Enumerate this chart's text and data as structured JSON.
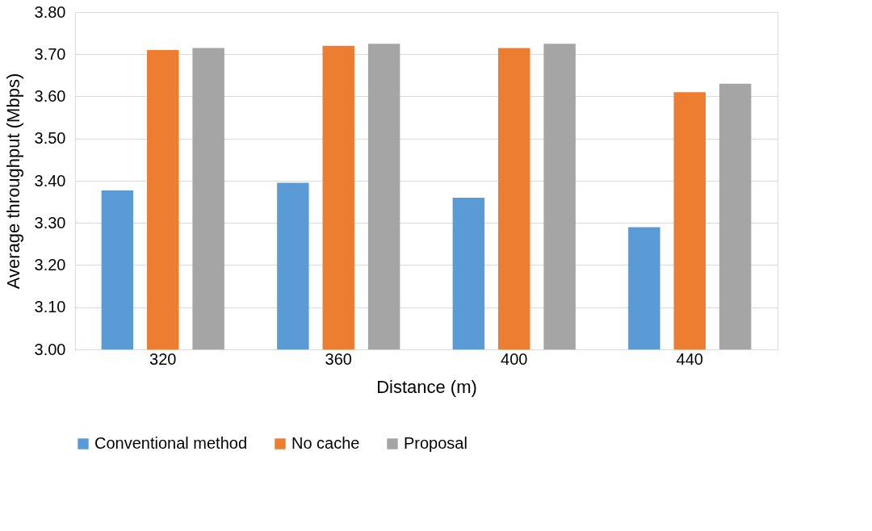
{
  "chart_data": {
    "type": "bar",
    "xlabel": "Distance (m)",
    "ylabel": "Average throughput  (Mbps)",
    "categories": [
      "320",
      "360",
      "400",
      "440"
    ],
    "series": [
      {
        "name": "Conventional method",
        "color": "#5b9bd5",
        "values": [
          3.377,
          3.395,
          3.36,
          3.29
        ]
      },
      {
        "name": "No cache",
        "color": "#ed7d31",
        "values": [
          3.71,
          3.72,
          3.715,
          3.61
        ]
      },
      {
        "name": "Proposal",
        "color": "#a5a5a5",
        "values": [
          3.715,
          3.725,
          3.725,
          3.63
        ]
      }
    ],
    "ylim": [
      3.0,
      3.8
    ],
    "yticks": [
      {
        "value": 3.0,
        "label": "3.00"
      },
      {
        "value": 3.1,
        "label": "3.10"
      },
      {
        "value": 3.2,
        "label": "3.20"
      },
      {
        "value": 3.3,
        "label": "3.30"
      },
      {
        "value": 3.4,
        "label": "3.40"
      },
      {
        "value": 3.5,
        "label": "3.50"
      },
      {
        "value": 3.6,
        "label": "3.60"
      },
      {
        "value": 3.7,
        "label": "3.70"
      },
      {
        "value": 3.8,
        "label": "3.80"
      }
    ],
    "grid": "y",
    "legend": "bottom"
  }
}
